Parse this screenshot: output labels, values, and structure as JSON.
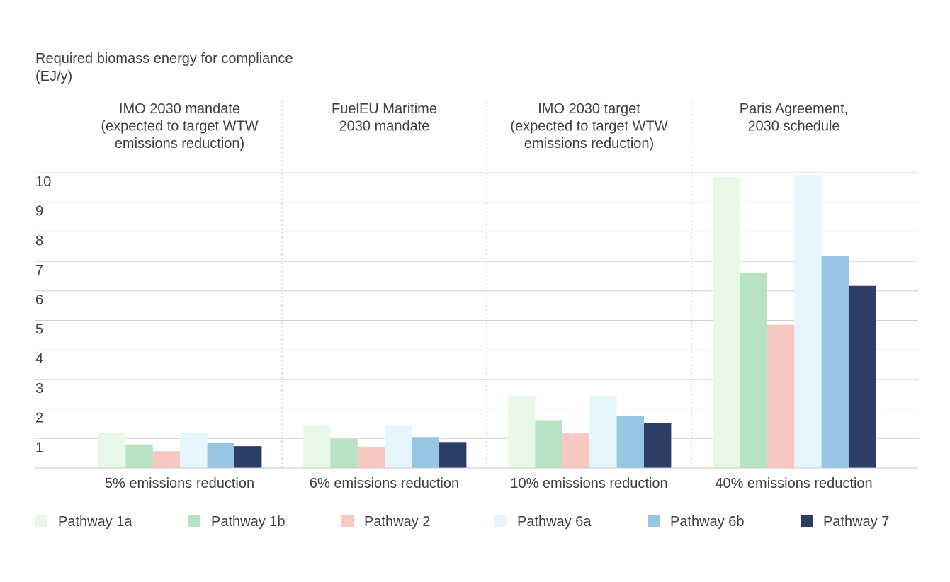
{
  "chart_data": {
    "type": "bar",
    "ylabel_lines": [
      "Required biomass energy for compliance",
      "(EJ/y)"
    ],
    "ylim": [
      0,
      10
    ],
    "yticks": [
      "1",
      "2",
      "3",
      "4",
      "5",
      "6",
      "7",
      "8",
      "9",
      "10"
    ],
    "grid": true,
    "legend_position": "bottom",
    "groups": [
      {
        "header_lines": [
          "IMO 2030 mandate",
          "(expected to target WTW",
          "emissions reduction)"
        ],
        "category": "5% emissions reduction"
      },
      {
        "header_lines": [
          "FuelEU Maritime",
          "2030 mandate"
        ],
        "category": "6% emissions reduction"
      },
      {
        "header_lines": [
          "IMO 2030 target",
          "(expected to target WTW",
          "emissions reduction)"
        ],
        "category": "10% emissions reduction"
      },
      {
        "header_lines": [
          "Paris Agreement,",
          "2030 schedule"
        ],
        "category": "40% emissions reduction"
      }
    ],
    "series": [
      {
        "name": "Pathway 1a",
        "color": "#e8f8e6",
        "values": [
          1.2,
          1.45,
          2.43,
          9.85
        ]
      },
      {
        "name": "Pathway 1b",
        "color": "#b8e2c4",
        "values": [
          0.8,
          0.98,
          1.62,
          6.62
        ]
      },
      {
        "name": "Pathway 2",
        "color": "#f8c8c2",
        "values": [
          0.57,
          0.7,
          1.18,
          4.85
        ]
      },
      {
        "name": "Pathway 6a",
        "color": "#e6f6fc",
        "values": [
          1.2,
          1.45,
          2.45,
          9.92
        ]
      },
      {
        "name": "Pathway 6b",
        "color": "#96c6e4",
        "values": [
          0.85,
          1.05,
          1.77,
          7.17
        ]
      },
      {
        "name": "Pathway 7",
        "color": "#2c3e66",
        "values": [
          0.74,
          0.88,
          1.53,
          6.17
        ]
      }
    ]
  }
}
